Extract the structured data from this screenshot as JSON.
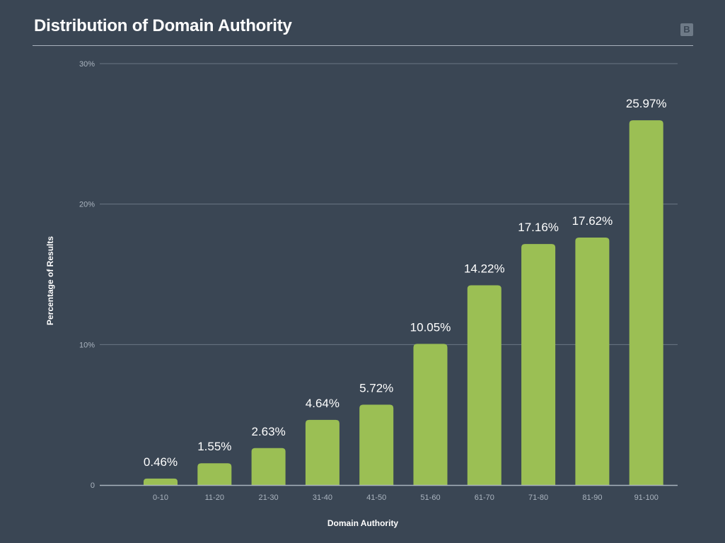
{
  "header": {
    "title": "Distribution of Domain Authority",
    "logo_letter": "B"
  },
  "colors": {
    "background": "#3a4654",
    "bar": "#9bbf54",
    "grid": "#6b7784",
    "axis": "#a8b2bd",
    "tick_text": "#aab4bf",
    "label_text": "#ffffff"
  },
  "chart_data": {
    "type": "bar",
    "title": "Distribution of Domain Authority",
    "xlabel": "Domain Authority",
    "ylabel": "Percentage of Results",
    "categories": [
      "0-10",
      "11-20",
      "21-30",
      "31-40",
      "41-50",
      "51-60",
      "61-70",
      "71-80",
      "81-90",
      "91-100"
    ],
    "values": [
      0.46,
      1.55,
      2.63,
      4.64,
      5.72,
      10.05,
      14.22,
      17.16,
      17.62,
      25.97
    ],
    "value_labels": [
      "0.46%",
      "1.55%",
      "2.63%",
      "4.64%",
      "5.72%",
      "10.05%",
      "14.22%",
      "17.16%",
      "17.62%",
      "25.97%"
    ],
    "yticks": [
      0,
      10,
      20,
      30
    ],
    "ytick_labels": [
      "0",
      "10%",
      "20%",
      "30%"
    ],
    "ylim": [
      0,
      30
    ],
    "grid": true,
    "legend": "none"
  }
}
